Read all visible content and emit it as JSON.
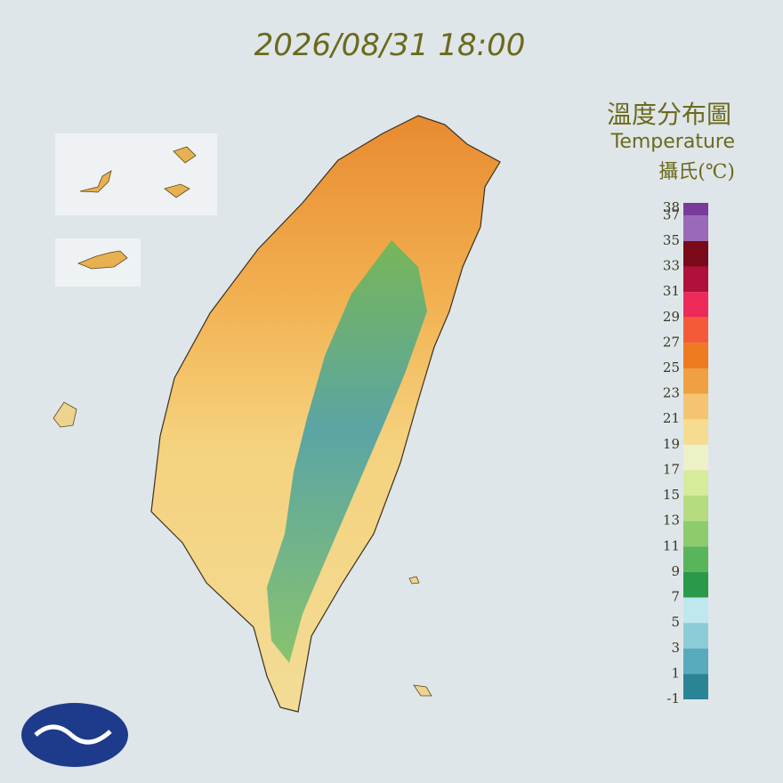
{
  "header": {
    "datetime": "2026/08/31 18:00"
  },
  "legend": {
    "title": "溫度分布圖",
    "subtitle": "Temperature",
    "unit": "攝氏(℃)",
    "ticks": [
      38,
      37,
      35,
      33,
      31,
      29,
      27,
      25,
      23,
      21,
      19,
      17,
      15,
      13,
      11,
      9,
      7,
      5,
      3,
      1,
      -1
    ],
    "colors": [
      "#7a3a9c",
      "#9a6ab8",
      "#7a0a1a",
      "#b0103a",
      "#ee2a5a",
      "#f45a3a",
      "#ee7a22",
      "#f0a040",
      "#f4c470",
      "#f6dc90",
      "#eef0c8",
      "#d6ec9a",
      "#b6dc80",
      "#8ccc6c",
      "#5ab45a",
      "#2a9a4a",
      "#bfe8ee",
      "#8cccd8",
      "#5aaabe",
      "#2a8496"
    ]
  }
}
